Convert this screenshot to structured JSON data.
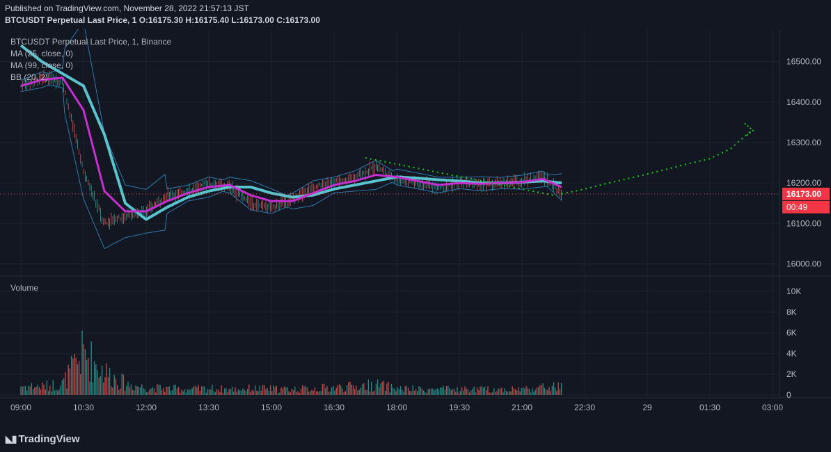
{
  "header": {
    "published": "Published on TradingView.com, November 28, 2022 21:57:13 JST",
    "symbol_line": "BTCUSDT Perpetual Last Price, 1 O:16175.30 H:16175.40 L:16173.00 C:16173.00"
  },
  "legend": {
    "title": "BTCUSDT Perpetual Last Price, 1, Binance",
    "ma25": "MA (25, close, 0)",
    "ma99": "MA (99, close, 0)",
    "bb": "BB (20, 2)",
    "volume": "Volume"
  },
  "price_axis": {
    "ticks": [
      "16500.00",
      "16400.00",
      "16300.00",
      "16200.00",
      "16100.00",
      "16000.00"
    ],
    "tick_values": [
      16500,
      16400,
      16300,
      16200,
      16100,
      16000
    ],
    "last_price": "16173.00",
    "countdown": "00:49"
  },
  "volume_axis": {
    "ticks": [
      "10K",
      "8K",
      "6K",
      "4K",
      "2K",
      "0"
    ],
    "tick_values": [
      10000,
      8000,
      6000,
      4000,
      2000,
      0
    ]
  },
  "time_axis": {
    "ticks": [
      "09:00",
      "10:30",
      "12:00",
      "13:30",
      "15:00",
      "16:30",
      "18:00",
      "19:30",
      "21:00",
      "22:30",
      "29",
      "01:30",
      "03:00"
    ]
  },
  "colors": {
    "background": "#131722",
    "up": "#26a69a",
    "down": "#ef5350",
    "ma25": "#c62fd1",
    "ma99": "#59c4cd",
    "bb": "#2e7ab0",
    "projection": "#19d219",
    "last_price_badge": "#f23645"
  },
  "chart_data": {
    "type": "line",
    "x": [
      "09:00",
      "09:30",
      "10:00",
      "10:30",
      "11:00",
      "11:30",
      "12:00",
      "12:30",
      "13:00",
      "13:30",
      "14:00",
      "14:30",
      "15:00",
      "15:30",
      "16:00",
      "16:30",
      "17:00",
      "17:30",
      "18:00",
      "18:30",
      "19:00",
      "19:30",
      "20:00",
      "20:30",
      "21:00",
      "21:30",
      "21:57"
    ],
    "series": [
      {
        "values": [
          16440,
          16460,
          16450,
          16230,
          16100,
          16120,
          16130,
          16170,
          16180,
          16200,
          16190,
          16150,
          16140,
          16160,
          16190,
          16200,
          16215,
          16240,
          16210,
          16200,
          16190,
          16200,
          16195,
          16200,
          16205,
          16215,
          16173
        ]
      },
      {
        "values": [
          16440,
          16455,
          16460,
          16380,
          16180,
          16130,
          16130,
          16155,
          16175,
          16190,
          16195,
          16170,
          16155,
          16155,
          16175,
          16195,
          16205,
          16220,
          16215,
          16205,
          16195,
          16200,
          16198,
          16200,
          16202,
          16210,
          16190
        ]
      },
      {
        "values": [
          16540,
          16500,
          16470,
          16440,
          16320,
          16150,
          16110,
          16140,
          16165,
          16180,
          16190,
          16190,
          16175,
          16165,
          16170,
          16185,
          16195,
          16205,
          16215,
          16212,
          16208,
          16205,
          16200,
          16200,
          16202,
          16205,
          16200
        ]
      }
    ],
    "ylim": [
      15970,
      16580
    ],
    "volume": [
      1000,
      900,
      1200,
      4500,
      2500,
      1200,
      800,
      700,
      600,
      700,
      600,
      700,
      650,
      600,
      700,
      800,
      900,
      1100,
      700,
      600,
      600,
      600,
      600,
      600,
      650,
      800,
      900
    ],
    "volume_ylim": [
      0,
      10000
    ],
    "projection": {
      "x": [
        "21:57",
        "22:30",
        "23:00",
        "23:30",
        "00:00",
        "00:30",
        "01:00",
        "01:30",
        "02:00",
        "02:30"
      ],
      "values": [
        16173,
        16185,
        16198,
        16210,
        16222,
        16235,
        16248,
        16260,
        16285,
        16330
      ]
    },
    "trendline": {
      "x": [
        "17:15",
        "21:50"
      ],
      "values": [
        16262,
        16168
      ]
    }
  }
}
